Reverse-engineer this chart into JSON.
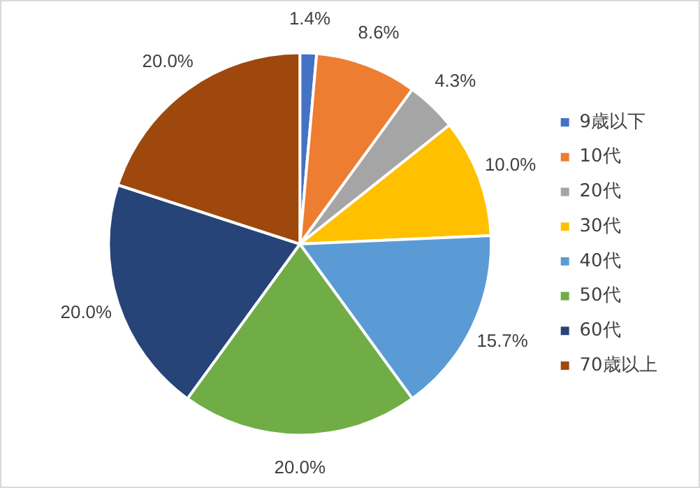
{
  "chart_data": {
    "type": "pie",
    "categories": [
      "9歳以下",
      "10代",
      "20代",
      "30代",
      "40代",
      "50代",
      "60代",
      "70歳以上"
    ],
    "values": [
      1.4,
      8.6,
      4.3,
      10.0,
      15.7,
      20.0,
      20.0,
      20.0
    ],
    "colors": [
      "#4472c4",
      "#ed7d31",
      "#a5a5a5",
      "#ffc000",
      "#5b9bd5",
      "#70ad47",
      "#264478",
      "#9e480e"
    ],
    "value_labels": [
      "1.4%",
      "8.6%",
      "4.3%",
      "10.0%",
      "15.7%",
      "20.0%",
      "20.0%",
      "20.0%"
    ],
    "legend": "right"
  }
}
